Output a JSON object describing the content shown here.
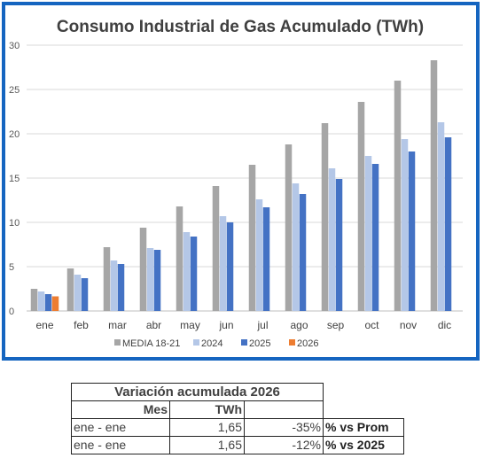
{
  "chart_data": {
    "type": "bar",
    "title": "Consumo Industrial de Gas Acumulado (TWh)",
    "categories": [
      "ene",
      "feb",
      "mar",
      "abr",
      "may",
      "jun",
      "jul",
      "ago",
      "sep",
      "oct",
      "nov",
      "dic"
    ],
    "ylim": [
      0,
      30
    ],
    "yticks": [
      0,
      5,
      10,
      15,
      20,
      25,
      30
    ],
    "grid": true,
    "legend_position": "bottom",
    "series": [
      {
        "name": "MEDIA 18-21",
        "color": "#a6a6a6",
        "values": [
          2.5,
          4.8,
          7.2,
          9.4,
          11.8,
          14.1,
          16.5,
          18.8,
          21.2,
          23.6,
          26.0,
          28.3
        ]
      },
      {
        "name": "2024",
        "color": "#b4c7e7",
        "values": [
          2.2,
          4.1,
          5.7,
          7.1,
          8.9,
          10.7,
          12.6,
          14.4,
          16.1,
          17.5,
          19.4,
          21.3
        ]
      },
      {
        "name": "2025",
        "color": "#4472c4",
        "values": [
          1.9,
          3.7,
          5.3,
          6.9,
          8.4,
          10.0,
          11.7,
          13.2,
          14.9,
          16.6,
          18.0,
          19.6
        ]
      },
      {
        "name": "2026",
        "color": "#ed7d31",
        "values": [
          1.65,
          null,
          null,
          null,
          null,
          null,
          null,
          null,
          null,
          null,
          null,
          null
        ]
      }
    ]
  },
  "table": {
    "title": "Variación acumulada 2026",
    "headers": {
      "mes": "Mes",
      "twh": "TWh"
    },
    "rows": [
      {
        "mes": "ene - ene",
        "twh": "1,65",
        "pct": "-35%",
        "label": "% vs Prom"
      },
      {
        "mes": "ene - ene",
        "twh": "1,65",
        "pct": "-12%",
        "label": "% vs 2025"
      }
    ]
  }
}
